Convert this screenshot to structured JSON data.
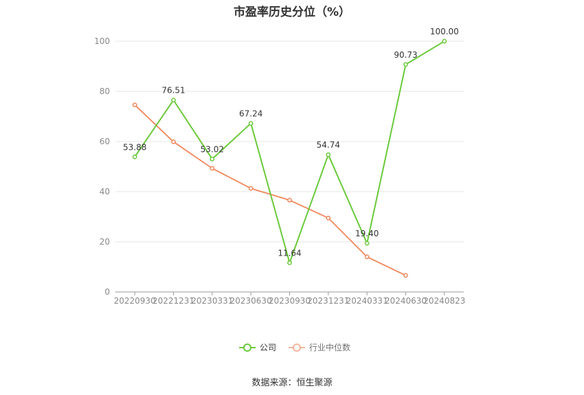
{
  "chart_data": {
    "type": "line",
    "title": "市盈率历史分位（%）",
    "categories": [
      "20220930",
      "20221231",
      "20230331",
      "20230630",
      "20230930",
      "20231231",
      "20240331",
      "20240630",
      "20240823"
    ],
    "ylim": [
      0,
      100
    ],
    "yticks": [
      0,
      20,
      40,
      60,
      80,
      100
    ],
    "grid": true,
    "legend_position": "bottom",
    "series": [
      {
        "name": "公司",
        "color": "#6ac93a",
        "values": [
          53.88,
          76.51,
          53.02,
          67.24,
          11.64,
          54.74,
          19.4,
          90.73,
          100.0
        ],
        "labels": [
          "53.88",
          "76.51",
          "53.02",
          "67.24",
          "11.64",
          "54.74",
          "19.40",
          "90.73",
          "100.00"
        ]
      },
      {
        "name": "行业中位数",
        "color": "#f0865a",
        "values": [
          74.6,
          59.9,
          49.3,
          41.3,
          36.6,
          29.5,
          14.0,
          6.6,
          null
        ]
      }
    ]
  },
  "source": "数据来源：恒生聚源"
}
